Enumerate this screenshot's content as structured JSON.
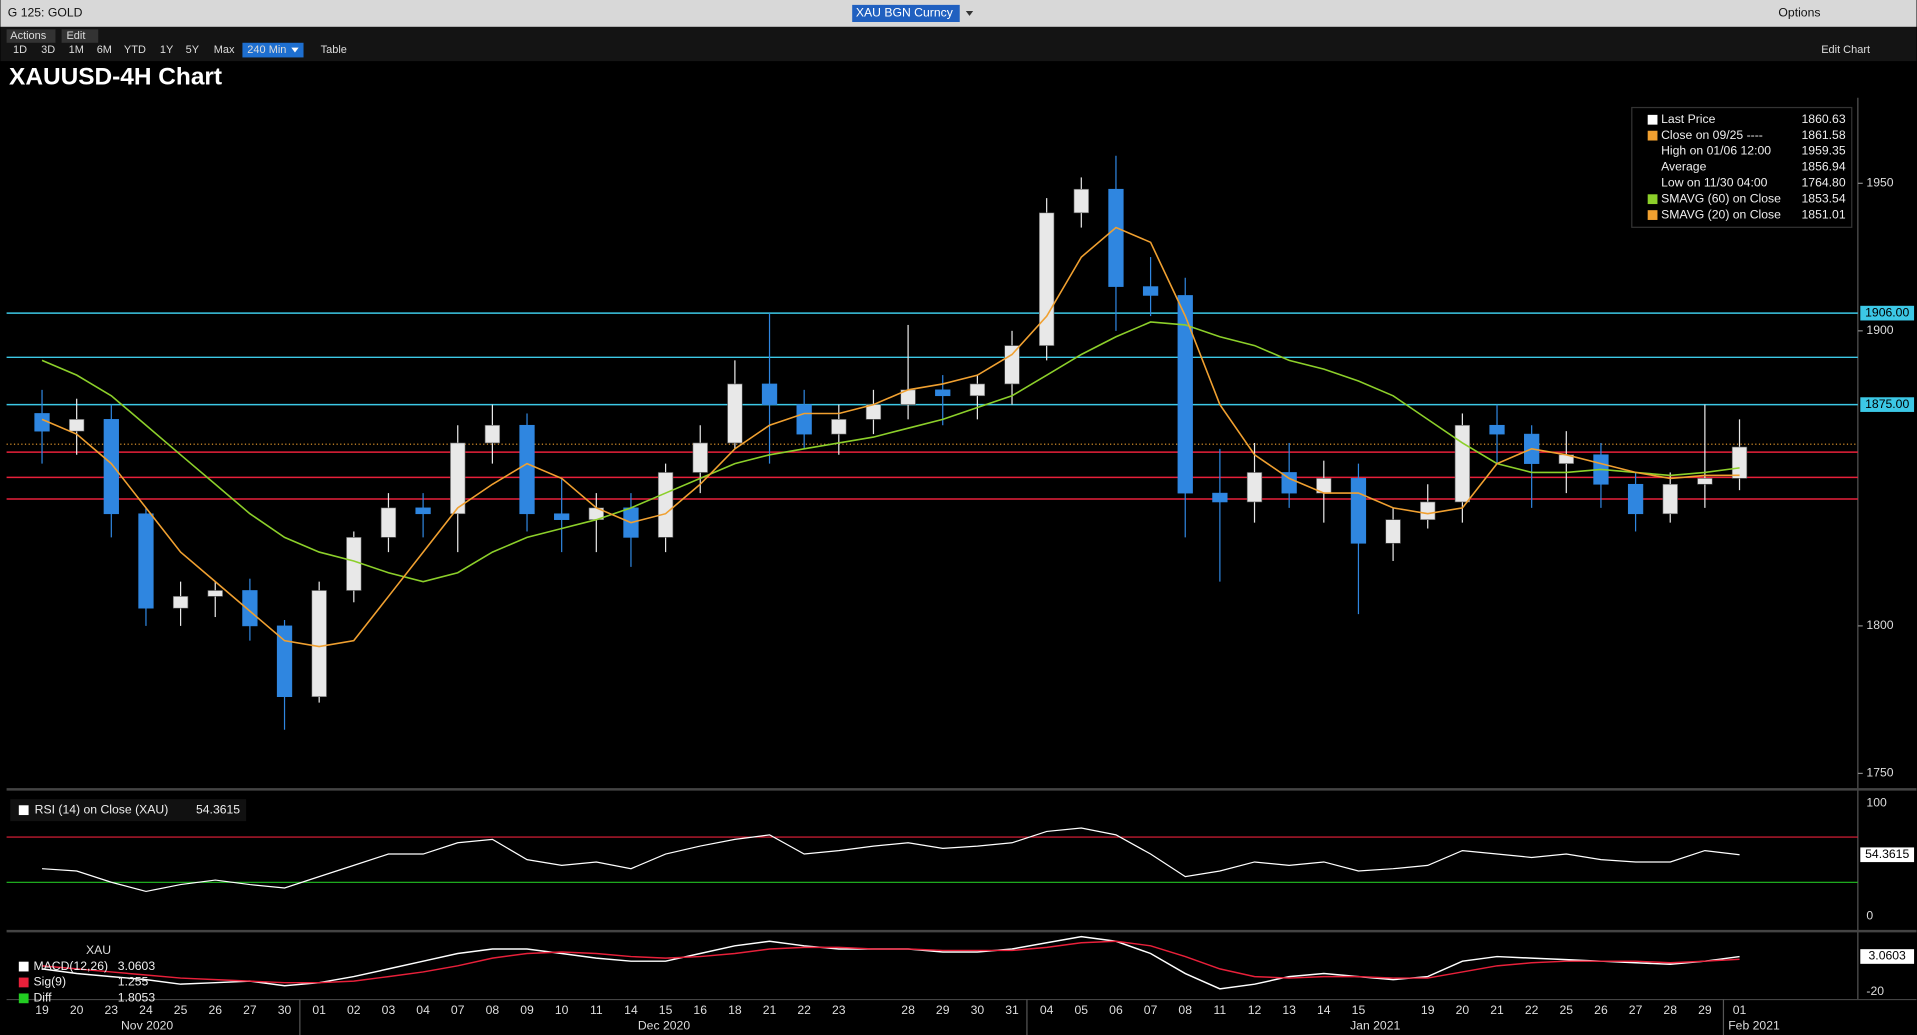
{
  "header": {
    "security": "G 125: GOLD",
    "ticker": "XAU BGN Curncy",
    "options": "Options"
  },
  "toolbar": {
    "actions": "Actions",
    "edit": "Edit",
    "ranges": [
      "1D",
      "3D",
      "1M",
      "6M",
      "YTD",
      "1Y",
      "5Y",
      "Max",
      "240 Min"
    ],
    "table": "Table",
    "edit_chart": "Edit Chart"
  },
  "chart_data": [
    {
      "type": "candlestick",
      "title": "XAUUSD-4H Chart",
      "categories": [
        "19",
        "20",
        "23",
        "24",
        "25",
        "26",
        "27",
        "30",
        "01",
        "02",
        "03",
        "04",
        "07",
        "08",
        "09",
        "10",
        "11",
        "14",
        "15",
        "16",
        "18",
        "21",
        "22",
        "23",
        null,
        "28",
        "29",
        "30",
        "31",
        "04",
        "05",
        "06",
        "07",
        "08",
        "11",
        "12",
        "13",
        "14",
        "15",
        null,
        "19",
        "20",
        "21",
        "22",
        "25",
        "26",
        "27",
        "28",
        "29",
        "01"
      ],
      "month_labels": [
        "Nov 2020",
        "Dec 2020",
        "Jan 2021",
        "Feb 2021"
      ],
      "open": [
        1872,
        1866,
        1870,
        1838,
        1806,
        1810,
        1812,
        1800,
        1776,
        1812,
        1830,
        1840,
        1838,
        1862,
        1868,
        1838,
        1836,
        1840,
        1830,
        1852,
        1862,
        1882,
        1875,
        1865,
        1870,
        1875,
        1880,
        1878,
        1882,
        1895,
        1940,
        1948,
        1915,
        1912,
        1845,
        1842,
        1852,
        1845,
        1850,
        1828,
        1836,
        1842,
        1868,
        1865,
        1855,
        1858,
        1848,
        1838,
        1848,
        1850
      ],
      "high": [
        1880,
        1877,
        1875,
        1840,
        1815,
        1815,
        1816,
        1802,
        1815,
        1832,
        1845,
        1845,
        1868,
        1875,
        1872,
        1850,
        1845,
        1845,
        1855,
        1868,
        1890,
        1906,
        1880,
        1875,
        1880,
        1902,
        1885,
        1885,
        1900,
        1945,
        1952,
        1959.35,
        1925,
        1918,
        1860,
        1862,
        1862,
        1856,
        1855,
        1840,
        1848,
        1872,
        1875,
        1868,
        1866,
        1862,
        1852,
        1852,
        1875,
        1870
      ],
      "low": [
        1855,
        1858,
        1830,
        1800,
        1800,
        1803,
        1795,
        1764.8,
        1774,
        1808,
        1825,
        1830,
        1825,
        1855,
        1832,
        1825,
        1825,
        1820,
        1825,
        1845,
        1860,
        1855,
        1860,
        1858,
        1865,
        1870,
        1868,
        1870,
        1875,
        1890,
        1935,
        1900,
        1905,
        1830,
        1815,
        1835,
        1840,
        1835,
        1804,
        1822,
        1833,
        1835,
        1855,
        1840,
        1845,
        1840,
        1832,
        1835,
        1840,
        1846
      ],
      "close": [
        1866,
        1870,
        1838,
        1806,
        1810,
        1812,
        1800,
        1776,
        1812,
        1830,
        1840,
        1838,
        1862,
        1868,
        1838,
        1836,
        1840,
        1830,
        1852,
        1862,
        1882,
        1875,
        1865,
        1870,
        1875,
        1880,
        1878,
        1882,
        1895,
        1940,
        1948,
        1915,
        1912,
        1845,
        1842,
        1852,
        1845,
        1850,
        1828,
        1836,
        1842,
        1868,
        1865,
        1855,
        1858,
        1848,
        1838,
        1848,
        1850,
        1860.63
      ],
      "up_color": "#e8e8e8",
      "down_color": "#2f86e0",
      "series": [
        {
          "color": "#8ccf2a",
          "values": [
            1890,
            1885,
            1878,
            1868,
            1858,
            1848,
            1838,
            1830,
            1825,
            1822,
            1818,
            1815,
            1818,
            1825,
            1830,
            1833,
            1836,
            1840,
            1845,
            1850,
            1855,
            1858,
            1860,
            1862,
            1864,
            1867,
            1870,
            1874,
            1878,
            1885,
            1892,
            1898,
            1903,
            1902,
            1898,
            1895,
            1890,
            1887,
            1883,
            1878,
            1870,
            1862,
            1855,
            1852,
            1852,
            1853,
            1852,
            1851,
            1852,
            1853.54
          ]
        },
        {
          "color": "#f0a030",
          "values": [
            1870,
            1865,
            1855,
            1840,
            1825,
            1815,
            1805,
            1795,
            1793,
            1795,
            1810,
            1825,
            1840,
            1848,
            1855,
            1850,
            1840,
            1835,
            1838,
            1848,
            1860,
            1868,
            1872,
            1872,
            1875,
            1880,
            1882,
            1885,
            1892,
            1905,
            1925,
            1935,
            1930,
            1905,
            1875,
            1858,
            1850,
            1845,
            1845,
            1840,
            1838,
            1840,
            1855,
            1860,
            1858,
            1855,
            1852,
            1850,
            1851,
            1851.01
          ]
        }
      ],
      "levels": [
        {
          "value": 1906,
          "label": "1906.00",
          "color": "#3cc8e6"
        },
        {
          "value": 1891.03,
          "color": "#3cc8e6"
        },
        {
          "value": 1875,
          "label": "1875.00",
          "color": "#3cc8e6"
        },
        {
          "value": 1858.88,
          "color": "#e8203a"
        },
        {
          "value": 1850.33,
          "color": "#e8203a"
        },
        {
          "value": 1843,
          "color": "#e8203a"
        }
      ],
      "legend": [
        {
          "name": "Last Price",
          "value": 1860.63,
          "color": "#ffffff"
        },
        {
          "name": "Close on 09/25 ----",
          "value": 1861.58,
          "color": "#f0a030"
        },
        {
          "name": "High on 01/06 12:00",
          "value": 1959.35
        },
        {
          "name": "Average",
          "value": 1856.94
        },
        {
          "name": "Low on 11/30 04:00",
          "value": 1764.8,
          "value_label": "1764.80"
        },
        {
          "name": "SMAVG (60)  on Close",
          "value": 1853.54,
          "color": "#8ccf2a"
        },
        {
          "name": "SMAVG (20)  on Close",
          "value": 1851.01,
          "color": "#f0a030"
        }
      ],
      "ylim": [
        1745,
        1979
      ],
      "yticks": [
        1750,
        1800,
        1900,
        1950
      ]
    },
    {
      "type": "line",
      "title": "RSI (14)  on Close (XAU)",
      "color": "#ffffff",
      "values": [
        42,
        40,
        30,
        22,
        28,
        32,
        28,
        25,
        35,
        45,
        55,
        55,
        65,
        68,
        50,
        45,
        48,
        42,
        55,
        62,
        68,
        72,
        55,
        58,
        62,
        65,
        60,
        62,
        65,
        75,
        78,
        72,
        55,
        35,
        40,
        48,
        45,
        48,
        40,
        42,
        45,
        58,
        55,
        52,
        55,
        50,
        48,
        48,
        58,
        54.3615
      ],
      "levels": [
        {
          "value": 70,
          "color": "#e8203a"
        },
        {
          "value": 30,
          "color": "#22c022"
        }
      ],
      "ylim": [
        -11,
        110
      ],
      "yticks": [
        0,
        100
      ]
    },
    {
      "type": "line",
      "title": "XAU",
      "series": [
        {
          "name": "MACD(12,26)",
          "color": "#ffffff",
          "values": [
            -5,
            -8,
            -10,
            -12,
            -15,
            -14,
            -13,
            -16,
            -14,
            -10,
            -5,
            0,
            5,
            8,
            8,
            5,
            2,
            0,
            0,
            5,
            10,
            13,
            10,
            8,
            8,
            8,
            6,
            6,
            8,
            12,
            16,
            13,
            5,
            -8,
            -18,
            -15,
            -10,
            -8,
            -10,
            -12,
            -10,
            0,
            3,
            2,
            1,
            0,
            -1,
            -2,
            0,
            3.0603
          ]
        },
        {
          "name": "Sig(9)",
          "color": "#e8203a",
          "values": [
            -3,
            -5,
            -7,
            -9,
            -11,
            -12,
            -13,
            -14,
            -14,
            -13,
            -10,
            -7,
            -3,
            2,
            5,
            6,
            5,
            3,
            2,
            3,
            5,
            8,
            9,
            9,
            8,
            8,
            7,
            7,
            7,
            9,
            12,
            13,
            10,
            3,
            -5,
            -10,
            -11,
            -10,
            -10,
            -11,
            -11,
            -7,
            -3,
            -1,
            0,
            0,
            0,
            -1,
            0,
            1.255
          ]
        }
      ],
      "diff": {
        "name": "Diff",
        "value": 1.8053,
        "color": "#22cc22"
      },
      "ylim": [
        -25,
        18
      ],
      "yticks": [
        -20
      ]
    }
  ]
}
